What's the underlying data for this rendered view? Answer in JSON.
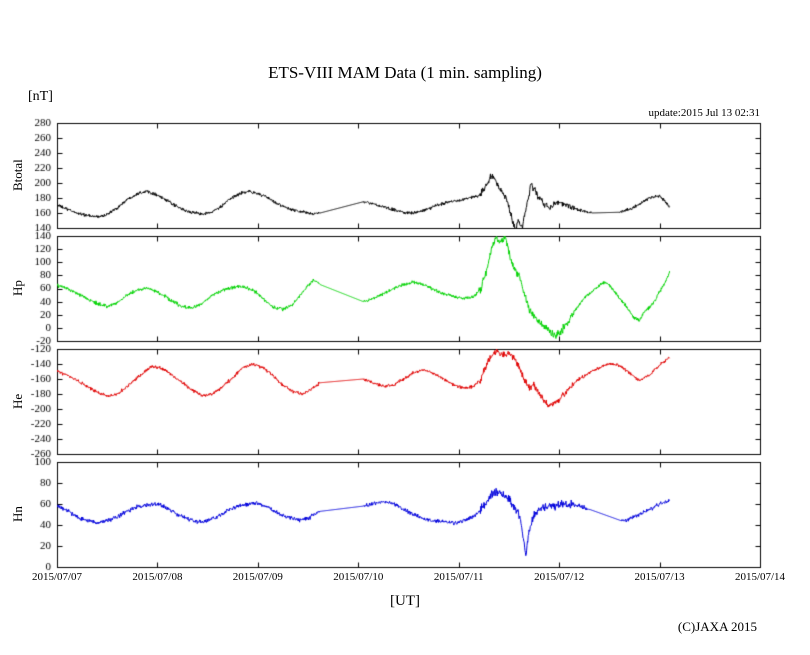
{
  "header": {
    "title": "ETS-VIII MAM Data (1 min. sampling)",
    "unit_label": "[nT]",
    "update_label": "update:2015 Jul 13 02:31"
  },
  "footer": {
    "xaxis_label": "[UT]",
    "copyright": "(C)JAXA 2015"
  },
  "chart_data": {
    "type": "line",
    "title": "ETS-VIII MAM Data (1 min. sampling)",
    "xlabel": "[UT]",
    "ylabel": "[nT]",
    "grid": false,
    "legend": "none",
    "x_range": [
      0,
      7
    ],
    "x_tick_labels": [
      "2015/07/07",
      "2015/07/08",
      "2015/07/09",
      "2015/07/10",
      "2015/07/11",
      "2015/07/12",
      "2015/07/13",
      "2015/07/14"
    ],
    "storm_noise": {
      "range": [
        4.2,
        5.15
      ],
      "factor": 2.2
    },
    "panels": [
      {
        "name": "Btotal",
        "color": "#000000",
        "ylim": [
          140,
          280
        ],
        "y_ticks": [
          140,
          160,
          180,
          200,
          220,
          240,
          260,
          280
        ],
        "noise": 2,
        "gaps": [
          [
            2.62,
            3.05
          ],
          [
            5.32,
            5.6
          ]
        ],
        "points": [
          [
            0,
            171
          ],
          [
            0.08,
            166
          ],
          [
            0.2,
            160
          ],
          [
            0.32,
            156
          ],
          [
            0.42,
            155
          ],
          [
            0.5,
            158
          ],
          [
            0.6,
            167
          ],
          [
            0.72,
            180
          ],
          [
            0.82,
            187
          ],
          [
            0.9,
            189
          ],
          [
            1,
            184
          ],
          [
            1.1,
            176
          ],
          [
            1.2,
            168
          ],
          [
            1.3,
            162
          ],
          [
            1.42,
            159
          ],
          [
            1.52,
            160
          ],
          [
            1.62,
            167
          ],
          [
            1.72,
            178
          ],
          [
            1.82,
            186
          ],
          [
            1.9,
            189
          ],
          [
            2,
            186
          ],
          [
            2.1,
            180
          ],
          [
            2.2,
            172
          ],
          [
            2.32,
            165
          ],
          [
            2.45,
            161
          ],
          [
            2.55,
            159
          ],
          [
            2.62,
            160
          ],
          [
            3.05,
            175
          ],
          [
            3.15,
            172
          ],
          [
            3.3,
            166
          ],
          [
            3.45,
            161
          ],
          [
            3.55,
            160
          ],
          [
            3.65,
            163
          ],
          [
            3.78,
            170
          ],
          [
            3.9,
            175
          ],
          [
            4,
            177
          ],
          [
            4.1,
            180
          ],
          [
            4.2,
            183
          ],
          [
            4.28,
            196
          ],
          [
            4.33,
            212
          ],
          [
            4.38,
            199
          ],
          [
            4.42,
            191
          ],
          [
            4.48,
            176
          ],
          [
            4.52,
            158
          ],
          [
            4.56,
            137
          ],
          [
            4.6,
            150
          ],
          [
            4.63,
            141
          ],
          [
            4.68,
            172
          ],
          [
            4.72,
            197
          ],
          [
            4.76,
            191
          ],
          [
            4.8,
            180
          ],
          [
            4.85,
            172
          ],
          [
            4.9,
            168
          ],
          [
            5,
            174
          ],
          [
            5.1,
            170
          ],
          [
            5.2,
            164
          ],
          [
            5.32,
            160
          ],
          [
            5.6,
            161
          ],
          [
            5.7,
            165
          ],
          [
            5.8,
            172
          ],
          [
            5.9,
            180
          ],
          [
            6,
            183
          ],
          [
            6.05,
            176
          ],
          [
            6.1,
            168
          ]
        ]
      },
      {
        "name": "Hp",
        "color": "#00d200",
        "ylim": [
          -20,
          140
        ],
        "y_ticks": [
          -20,
          0,
          20,
          40,
          60,
          80,
          100,
          120,
          140
        ],
        "noise": 2.5,
        "gaps": [
          [
            2.62,
            3.05
          ]
        ],
        "points": [
          [
            0,
            65
          ],
          [
            0.1,
            60
          ],
          [
            0.2,
            52
          ],
          [
            0.3,
            44
          ],
          [
            0.42,
            36
          ],
          [
            0.5,
            33
          ],
          [
            0.6,
            38
          ],
          [
            0.7,
            50
          ],
          [
            0.8,
            58
          ],
          [
            0.9,
            60
          ],
          [
            1,
            55
          ],
          [
            1.08,
            48
          ],
          [
            1.15,
            40
          ],
          [
            1.25,
            32
          ],
          [
            1.35,
            30
          ],
          [
            1.45,
            38
          ],
          [
            1.55,
            50
          ],
          [
            1.65,
            58
          ],
          [
            1.75,
            62
          ],
          [
            1.85,
            63
          ],
          [
            1.95,
            58
          ],
          [
            2.05,
            45
          ],
          [
            2.15,
            32
          ],
          [
            2.25,
            28
          ],
          [
            2.35,
            36
          ],
          [
            2.45,
            55
          ],
          [
            2.55,
            72
          ],
          [
            2.62,
            66
          ],
          [
            3.05,
            40
          ],
          [
            3.15,
            45
          ],
          [
            3.25,
            52
          ],
          [
            3.35,
            60
          ],
          [
            3.45,
            66
          ],
          [
            3.55,
            70
          ],
          [
            3.65,
            65
          ],
          [
            3.75,
            58
          ],
          [
            3.85,
            52
          ],
          [
            3.95,
            48
          ],
          [
            4.05,
            45
          ],
          [
            4.15,
            48
          ],
          [
            4.22,
            60
          ],
          [
            4.28,
            90
          ],
          [
            4.33,
            120
          ],
          [
            4.37,
            138
          ],
          [
            4.42,
            128
          ],
          [
            4.46,
            140
          ],
          [
            4.5,
            115
          ],
          [
            4.55,
            90
          ],
          [
            4.6,
            80
          ],
          [
            4.65,
            55
          ],
          [
            4.7,
            30
          ],
          [
            4.75,
            18
          ],
          [
            4.8,
            8
          ],
          [
            4.85,
            2
          ],
          [
            4.9,
            -5
          ],
          [
            4.95,
            -12
          ],
          [
            5,
            -8
          ],
          [
            5.05,
            0
          ],
          [
            5.1,
            10
          ],
          [
            5.15,
            25
          ],
          [
            5.2,
            35
          ],
          [
            5.25,
            45
          ],
          [
            5.32,
            55
          ],
          [
            5.38,
            62
          ],
          [
            5.45,
            70
          ],
          [
            5.5,
            65
          ],
          [
            5.55,
            55
          ],
          [
            5.6,
            45
          ],
          [
            5.68,
            30
          ],
          [
            5.75,
            15
          ],
          [
            5.8,
            12
          ],
          [
            5.85,
            25
          ],
          [
            5.9,
            32
          ],
          [
            5.95,
            40
          ],
          [
            6,
            55
          ],
          [
            6.05,
            68
          ],
          [
            6.1,
            85
          ]
        ]
      },
      {
        "name": "He",
        "color": "#e00000",
        "ylim": [
          -260,
          -120
        ],
        "y_ticks": [
          -260,
          -240,
          -220,
          -200,
          -180,
          -160,
          -140,
          -120
        ],
        "noise": 2,
        "gaps": [
          [
            2.62,
            3.05
          ]
        ],
        "points": [
          [
            0,
            -150
          ],
          [
            0.1,
            -155
          ],
          [
            0.2,
            -162
          ],
          [
            0.3,
            -170
          ],
          [
            0.4,
            -178
          ],
          [
            0.5,
            -183
          ],
          [
            0.6,
            -180
          ],
          [
            0.7,
            -170
          ],
          [
            0.8,
            -158
          ],
          [
            0.9,
            -148
          ],
          [
            0.95,
            -143
          ],
          [
            1.05,
            -146
          ],
          [
            1.15,
            -155
          ],
          [
            1.25,
            -165
          ],
          [
            1.35,
            -175
          ],
          [
            1.45,
            -182
          ],
          [
            1.55,
            -180
          ],
          [
            1.65,
            -170
          ],
          [
            1.75,
            -158
          ],
          [
            1.85,
            -145
          ],
          [
            1.95,
            -140
          ],
          [
            2.05,
            -145
          ],
          [
            2.15,
            -155
          ],
          [
            2.25,
            -168
          ],
          [
            2.35,
            -177
          ],
          [
            2.45,
            -180
          ],
          [
            2.55,
            -172
          ],
          [
            2.62,
            -165
          ],
          [
            3.05,
            -160
          ],
          [
            3.15,
            -165
          ],
          [
            3.25,
            -170
          ],
          [
            3.35,
            -168
          ],
          [
            3.45,
            -160
          ],
          [
            3.55,
            -152
          ],
          [
            3.65,
            -148
          ],
          [
            3.75,
            -152
          ],
          [
            3.85,
            -160
          ],
          [
            3.95,
            -168
          ],
          [
            4.05,
            -172
          ],
          [
            4.15,
            -170
          ],
          [
            4.22,
            -160
          ],
          [
            4.28,
            -140
          ],
          [
            4.33,
            -128
          ],
          [
            4.38,
            -124
          ],
          [
            4.45,
            -128
          ],
          [
            4.5,
            -125
          ],
          [
            4.55,
            -130
          ],
          [
            4.6,
            -145
          ],
          [
            4.65,
            -160
          ],
          [
            4.7,
            -172
          ],
          [
            4.75,
            -168
          ],
          [
            4.8,
            -178
          ],
          [
            4.85,
            -190
          ],
          [
            4.9,
            -195
          ],
          [
            4.95,
            -192
          ],
          [
            5,
            -188
          ],
          [
            5.05,
            -180
          ],
          [
            5.1,
            -172
          ],
          [
            5.15,
            -165
          ],
          [
            5.2,
            -160
          ],
          [
            5.3,
            -152
          ],
          [
            5.4,
            -145
          ],
          [
            5.5,
            -140
          ],
          [
            5.6,
            -142
          ],
          [
            5.7,
            -152
          ],
          [
            5.8,
            -162
          ],
          [
            5.9,
            -155
          ],
          [
            5.95,
            -148
          ],
          [
            6,
            -142
          ],
          [
            6.05,
            -136
          ],
          [
            6.1,
            -131
          ]
        ]
      },
      {
        "name": "Hn",
        "color": "#0000dc",
        "ylim": [
          0,
          100
        ],
        "y_ticks": [
          0,
          20,
          40,
          60,
          80,
          100
        ],
        "noise": 1.8,
        "gaps": [
          [
            2.62,
            3.05
          ],
          [
            5.3,
            5.62
          ]
        ],
        "points": [
          [
            0,
            58
          ],
          [
            0.1,
            54
          ],
          [
            0.2,
            48
          ],
          [
            0.3,
            44
          ],
          [
            0.4,
            42
          ],
          [
            0.5,
            44
          ],
          [
            0.6,
            48
          ],
          [
            0.7,
            53
          ],
          [
            0.8,
            57
          ],
          [
            0.9,
            59
          ],
          [
            1,
            60
          ],
          [
            1.1,
            56
          ],
          [
            1.2,
            50
          ],
          [
            1.3,
            46
          ],
          [
            1.4,
            43
          ],
          [
            1.5,
            44
          ],
          [
            1.6,
            48
          ],
          [
            1.7,
            54
          ],
          [
            1.8,
            58
          ],
          [
            1.9,
            60
          ],
          [
            2,
            61
          ],
          [
            2.1,
            57
          ],
          [
            2.2,
            51
          ],
          [
            2.3,
            47
          ],
          [
            2.4,
            45
          ],
          [
            2.5,
            46
          ],
          [
            2.55,
            50
          ],
          [
            2.62,
            53
          ],
          [
            3.05,
            58
          ],
          [
            3.15,
            60
          ],
          [
            3.25,
            62
          ],
          [
            3.35,
            60
          ],
          [
            3.45,
            55
          ],
          [
            3.55,
            50
          ],
          [
            3.65,
            46
          ],
          [
            3.75,
            44
          ],
          [
            3.85,
            43
          ],
          [
            3.95,
            42
          ],
          [
            4.05,
            44
          ],
          [
            4.15,
            48
          ],
          [
            4.25,
            58
          ],
          [
            4.32,
            68
          ],
          [
            4.38,
            72
          ],
          [
            4.45,
            68
          ],
          [
            4.5,
            64
          ],
          [
            4.55,
            58
          ],
          [
            4.6,
            50
          ],
          [
            4.64,
            30
          ],
          [
            4.67,
            12
          ],
          [
            4.7,
            35
          ],
          [
            4.75,
            50
          ],
          [
            4.8,
            55
          ],
          [
            4.85,
            57
          ],
          [
            4.9,
            58
          ],
          [
            5,
            60
          ],
          [
            5.1,
            60
          ],
          [
            5.2,
            58
          ],
          [
            5.3,
            55
          ],
          [
            5.62,
            44
          ],
          [
            5.7,
            46
          ],
          [
            5.8,
            50
          ],
          [
            5.9,
            55
          ],
          [
            6,
            60
          ],
          [
            6.05,
            62
          ],
          [
            6.1,
            63
          ]
        ]
      }
    ]
  }
}
